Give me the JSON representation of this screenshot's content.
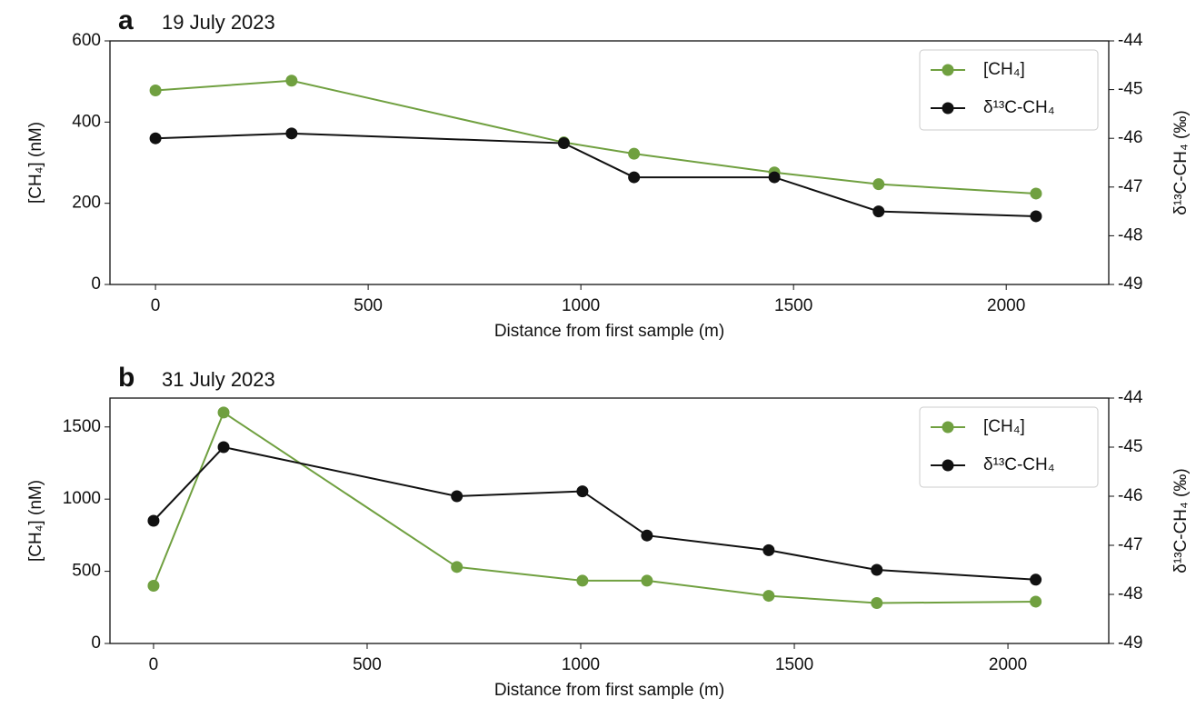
{
  "chart_data": [
    {
      "type": "line",
      "panel_label": "a",
      "title": "19 July 2023",
      "x_label": "Distance from first sample (m)",
      "y_label": "[CH₄] (nM)",
      "y2_label": "δ¹³C-CH₄ (‰)",
      "x": [
        0,
        320,
        960,
        1125,
        1455,
        1700,
        2070
      ],
      "series": [
        {
          "name": "[CH₄]",
          "color": "#70a040",
          "values": [
            478,
            502,
            350,
            322,
            276,
            247,
            224
          ]
        },
        {
          "name": "δ¹³C-CH₄",
          "color": "#111111",
          "axis": "y2",
          "values": [
            -46.0,
            -45.9,
            -46.1,
            -46.8,
            -46.8,
            -47.5,
            -47.6
          ]
        }
      ],
      "xlim": [
        -107,
        2241
      ],
      "xticks": [
        0,
        500,
        1000,
        1500,
        2000
      ],
      "ylim": [
        0,
        600
      ],
      "yticks": [
        0,
        200,
        400,
        600
      ],
      "y2lim": [
        -49,
        -44
      ],
      "y2ticks": [
        -49,
        -48,
        -47,
        -46,
        -45,
        -44
      ],
      "legend": "upper right"
    },
    {
      "type": "line",
      "panel_label": "b",
      "title": "31 July 2023",
      "x_label": "Distance from first sample (m)",
      "y_label": "[CH₄] (nM)",
      "y2_label": "δ¹³C-CH₄ (‰)",
      "x": [
        0,
        164,
        710,
        1004,
        1155,
        1440,
        1693,
        2065
      ],
      "series": [
        {
          "name": "[CH₄]",
          "color": "#70a040",
          "values": [
            400,
            1600,
            530,
            435,
            435,
            330,
            280,
            290
          ]
        },
        {
          "name": "δ¹³C-CH₄",
          "color": "#111111",
          "axis": "y2",
          "values": [
            -46.5,
            -45.0,
            -46.0,
            -45.9,
            -46.8,
            -47.1,
            -47.5,
            -47.7
          ]
        }
      ],
      "xlim": [
        -102,
        2236
      ],
      "xticks": [
        0,
        500,
        1000,
        1500,
        2000
      ],
      "ylim": [
        0,
        1700
      ],
      "yticks": [
        0,
        500,
        1000,
        1500
      ],
      "y2lim": [
        -49,
        -44
      ],
      "y2ticks": [
        -49,
        -48,
        -47,
        -46,
        -45,
        -44
      ],
      "legend": "upper right"
    }
  ]
}
